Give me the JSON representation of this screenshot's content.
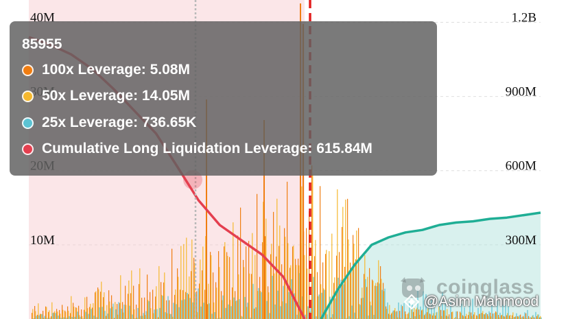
{
  "chart_data": {
    "type": "bar",
    "left_axis": {
      "ticks": [
        "10M",
        "20M",
        "30M",
        "40M"
      ],
      "tick_values": [
        10000000,
        20000000,
        30000000,
        40000000
      ],
      "ylim": [
        0,
        43000000
      ]
    },
    "right_axis": {
      "ticks": [
        "300M",
        "600M",
        "900M",
        "1.2B"
      ],
      "tick_values": [
        300000000,
        600000000,
        900000000,
        1200000000
      ],
      "ylim": [
        0,
        1290000000
      ]
    },
    "series": [
      {
        "name": "100x Leverage",
        "color": "#f07d11"
      },
      {
        "name": "50x Leverage",
        "color": "#f5b82e"
      },
      {
        "name": "25x Leverage",
        "color": "#5bc3d3"
      },
      {
        "name": "Cumulative Long Liquidation Leverage",
        "color": "#e43f4f"
      },
      {
        "color": "#1fae95"
      }
    ],
    "current_price_marker": "red-dashed-vertical-line",
    "hover_marker": "grey-dotted-vertical-line",
    "long_cumulative_values": [
      1140000000,
      1110000000,
      1070000000,
      1010000000,
      930000000,
      840000000,
      750000000,
      615840000,
      480000000,
      380000000,
      320000000,
      260000000,
      170000000,
      0
    ],
    "short_cumulative_values": [
      0,
      120000000,
      220000000,
      300000000,
      330000000,
      350000000,
      360000000,
      380000000,
      390000000,
      395000000,
      405000000,
      410000000,
      420000000,
      430000000
    ]
  },
  "tooltip": {
    "title": "85955",
    "rows": [
      {
        "label": "100x Leverage: 5.08M",
        "color": "#f07d11"
      },
      {
        "label": "50x Leverage: 14.05M",
        "color": "#f5b82e"
      },
      {
        "label": "25x Leverage: 736.65K",
        "color": "#5bc3d3"
      },
      {
        "label": "Cumulative Long Liquidation Leverage: 615.84M",
        "color": "#e43f4f"
      }
    ]
  },
  "watermark": {
    "text": "coinglass"
  },
  "credit": {
    "text": "@Asim Mahmood"
  }
}
